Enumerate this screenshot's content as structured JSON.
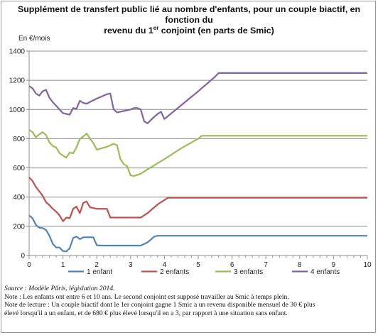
{
  "title": {
    "line1": "Supplément de transfert public lié au nombre d'enfants, pour un couple biactif, en fonction du",
    "line2_pre": "revenu du 1",
    "line2_sup": "er",
    "line2_post": " conjoint (en parts de Smic)"
  },
  "notes": {
    "source": "Source : Modèle Pâris, législation 2014.",
    "note1": "Note : Les enfants ont entre 6 et 10 ans. Le second conjoint est supposé travailler au Smic à temps plein.",
    "note2a": "Note de lecture : Un couple biactif dont le 1er conjoint gagne 1 Smic a un revenu disponible mensuel de 30 € plus",
    "note2b": "élevé lorsqu'il a un enfant, et de 680 € plus élevé lorsqu'il en a 3, par rapport à une situation sans enfant."
  },
  "chart_data": {
    "type": "line",
    "title": "Supplément de transfert public lié au nombre d'enfants, pour un couple biactif, en fonction du revenu du 1er conjoint (en parts de Smic)",
    "xlabel": "",
    "ylabel": "En €/mois",
    "xlim": [
      0,
      10
    ],
    "ylim": [
      0,
      1400
    ],
    "xticks": [
      "0",
      "1",
      "2",
      "3",
      "4",
      "5",
      "6",
      "7",
      "8",
      "9",
      "10"
    ],
    "yticks": [
      "0",
      "200",
      "400",
      "600",
      "800",
      "1000",
      "1200",
      "1400"
    ],
    "grid": true,
    "legend_position": "bottom",
    "series": [
      {
        "name": "1 enfant",
        "color": "#4f81bd",
        "points": [
          [
            0,
            275
          ],
          [
            0.1,
            255
          ],
          [
            0.2,
            210
          ],
          [
            0.3,
            190
          ],
          [
            0.4,
            188
          ],
          [
            0.5,
            175
          ],
          [
            0.6,
            135
          ],
          [
            0.7,
            80
          ],
          [
            0.8,
            55
          ],
          [
            0.9,
            55
          ],
          [
            1.0,
            30
          ],
          [
            1.1,
            28
          ],
          [
            1.2,
            50
          ],
          [
            1.3,
            120
          ],
          [
            1.4,
            130
          ],
          [
            1.5,
            112
          ],
          [
            1.6,
            125
          ],
          [
            1.7,
            125
          ],
          [
            1.9,
            125
          ],
          [
            2.0,
            70
          ],
          [
            2.2,
            68
          ],
          [
            2.5,
            68
          ],
          [
            3.0,
            68
          ],
          [
            3.3,
            68
          ],
          [
            3.5,
            90
          ],
          [
            3.7,
            130
          ],
          [
            3.8,
            135
          ],
          [
            4.0,
            135
          ],
          [
            5.0,
            135
          ],
          [
            6.0,
            135
          ],
          [
            7.0,
            135
          ],
          [
            8.0,
            135
          ],
          [
            9.0,
            135
          ],
          [
            10.0,
            135
          ]
        ]
      },
      {
        "name": "2 enfants",
        "color": "#c0504d",
        "points": [
          [
            0,
            535
          ],
          [
            0.1,
            510
          ],
          [
            0.2,
            470
          ],
          [
            0.3,
            440
          ],
          [
            0.4,
            410
          ],
          [
            0.5,
            365
          ],
          [
            0.6,
            345
          ],
          [
            0.7,
            320
          ],
          [
            0.8,
            300
          ],
          [
            0.9,
            275
          ],
          [
            1.0,
            235
          ],
          [
            1.1,
            260
          ],
          [
            1.2,
            255
          ],
          [
            1.3,
            320
          ],
          [
            1.4,
            335
          ],
          [
            1.5,
            290
          ],
          [
            1.6,
            360
          ],
          [
            1.7,
            370
          ],
          [
            1.8,
            330
          ],
          [
            1.9,
            325
          ],
          [
            2.0,
            320
          ],
          [
            2.3,
            320
          ],
          [
            2.4,
            260
          ],
          [
            2.6,
            260
          ],
          [
            3.3,
            260
          ],
          [
            3.5,
            290
          ],
          [
            3.8,
            350
          ],
          [
            4.0,
            380
          ],
          [
            4.1,
            395
          ],
          [
            5.0,
            395
          ],
          [
            6.0,
            395
          ],
          [
            7.0,
            395
          ],
          [
            8.0,
            395
          ],
          [
            9.0,
            395
          ],
          [
            10.0,
            395
          ]
        ]
      },
      {
        "name": "3 enfants",
        "color": "#9bbb59",
        "points": [
          [
            0,
            860
          ],
          [
            0.1,
            845
          ],
          [
            0.2,
            810
          ],
          [
            0.3,
            830
          ],
          [
            0.4,
            845
          ],
          [
            0.5,
            825
          ],
          [
            0.6,
            775
          ],
          [
            0.7,
            750
          ],
          [
            0.8,
            740
          ],
          [
            0.9,
            700
          ],
          [
            1.0,
            685
          ],
          [
            1.1,
            670
          ],
          [
            1.2,
            705
          ],
          [
            1.3,
            700
          ],
          [
            1.4,
            740
          ],
          [
            1.5,
            800
          ],
          [
            1.6,
            815
          ],
          [
            1.7,
            835
          ],
          [
            1.8,
            800
          ],
          [
            1.9,
            770
          ],
          [
            2.0,
            725
          ],
          [
            2.3,
            745
          ],
          [
            2.5,
            765
          ],
          [
            2.6,
            755
          ],
          [
            2.7,
            660
          ],
          [
            2.8,
            625
          ],
          [
            2.9,
            612
          ],
          [
            3.0,
            548
          ],
          [
            3.1,
            545
          ],
          [
            3.3,
            560
          ],
          [
            3.5,
            590
          ],
          [
            4.0,
            660
          ],
          [
            4.5,
            735
          ],
          [
            5.0,
            800
          ],
          [
            5.1,
            820
          ],
          [
            6.0,
            820
          ],
          [
            7.0,
            820
          ],
          [
            8.0,
            820
          ],
          [
            9.0,
            820
          ],
          [
            10.0,
            820
          ]
        ]
      },
      {
        "name": "4 enfants",
        "color": "#8064a2",
        "points": [
          [
            0,
            1160
          ],
          [
            0.1,
            1145
          ],
          [
            0.2,
            1110
          ],
          [
            0.3,
            1095
          ],
          [
            0.4,
            1125
          ],
          [
            0.5,
            1135
          ],
          [
            0.6,
            1080
          ],
          [
            0.7,
            1050
          ],
          [
            0.8,
            1025
          ],
          [
            0.9,
            1000
          ],
          [
            1.0,
            975
          ],
          [
            1.1,
            970
          ],
          [
            1.2,
            965
          ],
          [
            1.3,
            1010
          ],
          [
            1.4,
            1005
          ],
          [
            1.5,
            1060
          ],
          [
            1.6,
            1045
          ],
          [
            1.7,
            1040
          ],
          [
            2.0,
            1075
          ],
          [
            2.3,
            1105
          ],
          [
            2.4,
            1110
          ],
          [
            2.5,
            1000
          ],
          [
            2.6,
            980
          ],
          [
            3.0,
            1000
          ],
          [
            3.1,
            1010
          ],
          [
            3.2,
            1010
          ],
          [
            3.3,
            1000
          ],
          [
            3.4,
            920
          ],
          [
            3.5,
            905
          ],
          [
            3.7,
            950
          ],
          [
            3.8,
            970
          ],
          [
            3.9,
            985
          ],
          [
            4.0,
            935
          ],
          [
            4.5,
            1030
          ],
          [
            5.0,
            1125
          ],
          [
            5.5,
            1225
          ],
          [
            5.6,
            1250
          ],
          [
            6.0,
            1250
          ],
          [
            7.0,
            1250
          ],
          [
            8.0,
            1250
          ],
          [
            9.0,
            1250
          ],
          [
            10.0,
            1250
          ]
        ]
      }
    ]
  }
}
